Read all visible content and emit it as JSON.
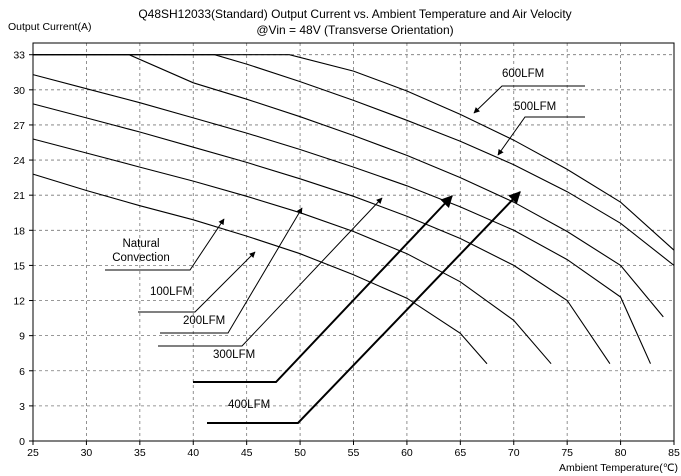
{
  "chart_data": {
    "type": "line",
    "title": "Q48SH12033(Standard)  Output Current vs. Ambient Temperature and Air Velocity",
    "subtitle": "@Vin = 48V (Transverse Orientation)",
    "ylabel": "Output Current(A)",
    "xlabel": "Ambient Temperature(℃)",
    "xlim": [
      25,
      85
    ],
    "ylim": [
      0,
      34
    ],
    "x_ticks": [
      25,
      30,
      35,
      40,
      45,
      50,
      55,
      60,
      65,
      70,
      75,
      80,
      85
    ],
    "y_ticks": [
      0,
      3,
      6,
      9,
      12,
      15,
      18,
      21,
      24,
      27,
      30,
      33
    ],
    "grid": "dashed",
    "series": [
      {
        "name": "Natural Convection",
        "points": [
          [
            25,
            22.8
          ],
          [
            30,
            21.4
          ],
          [
            35,
            20.1
          ],
          [
            40,
            18.9
          ],
          [
            45,
            17.5
          ],
          [
            50,
            16.0
          ],
          [
            55,
            14.2
          ],
          [
            60,
            12.2
          ],
          [
            65,
            9.2
          ],
          [
            67.5,
            6.6
          ]
        ]
      },
      {
        "name": "100LFM",
        "points": [
          [
            25,
            25.8
          ],
          [
            30,
            24.6
          ],
          [
            35,
            23.4
          ],
          [
            40,
            22.2
          ],
          [
            45,
            20.9
          ],
          [
            50,
            19.5
          ],
          [
            55,
            17.9
          ],
          [
            60,
            16.0
          ],
          [
            65,
            13.6
          ],
          [
            70,
            10.3
          ],
          [
            73.5,
            6.6
          ]
        ]
      },
      {
        "name": "200LFM",
        "points": [
          [
            25,
            28.8
          ],
          [
            30,
            27.6
          ],
          [
            35,
            26.4
          ],
          [
            40,
            25.1
          ],
          [
            45,
            23.8
          ],
          [
            50,
            22.4
          ],
          [
            55,
            20.9
          ],
          [
            60,
            19.2
          ],
          [
            65,
            17.3
          ],
          [
            70,
            15.0
          ],
          [
            75,
            12.0
          ],
          [
            79,
            6.6
          ]
        ]
      },
      {
        "name": "300LFM",
        "points": [
          [
            25,
            31.3
          ],
          [
            30,
            30.1
          ],
          [
            35,
            28.9
          ],
          [
            40,
            27.6
          ],
          [
            45,
            26.3
          ],
          [
            50,
            24.9
          ],
          [
            55,
            23.4
          ],
          [
            60,
            21.8
          ],
          [
            65,
            20.0
          ],
          [
            70,
            18.0
          ],
          [
            75,
            15.5
          ],
          [
            80,
            12.3
          ],
          [
            82.8,
            6.6
          ]
        ]
      },
      {
        "name": "400LFM",
        "points": [
          [
            25,
            33.0
          ],
          [
            34,
            33.0
          ],
          [
            40,
            30.6
          ],
          [
            45,
            29.2
          ],
          [
            50,
            27.7
          ],
          [
            55,
            26.1
          ],
          [
            60,
            24.4
          ],
          [
            65,
            22.5
          ],
          [
            70,
            20.4
          ],
          [
            75,
            17.9
          ],
          [
            80,
            15.0
          ],
          [
            84,
            10.6
          ]
        ]
      },
      {
        "name": "500LFM",
        "points": [
          [
            25,
            33.0
          ],
          [
            42,
            33.0
          ],
          [
            45,
            32.2
          ],
          [
            50,
            30.7
          ],
          [
            55,
            29.1
          ],
          [
            60,
            27.4
          ],
          [
            65,
            25.6
          ],
          [
            70,
            23.6
          ],
          [
            75,
            21.3
          ],
          [
            80,
            18.6
          ],
          [
            85,
            15.0
          ]
        ]
      },
      {
        "name": "600LFM",
        "points": [
          [
            25,
            33.0
          ],
          [
            49,
            33.0
          ],
          [
            55,
            31.6
          ],
          [
            60,
            29.9
          ],
          [
            65,
            27.9
          ],
          [
            70,
            25.7
          ],
          [
            75,
            23.2
          ],
          [
            80,
            20.4
          ],
          [
            85,
            16.3
          ]
        ]
      }
    ],
    "annotations": [
      {
        "text": "600LFM"
      },
      {
        "text": "500LFM"
      },
      {
        "text": "Natural\nConvection"
      },
      {
        "text": "100LFM"
      },
      {
        "text": "200LFM"
      },
      {
        "text": "300LFM"
      },
      {
        "text": "400LFM"
      }
    ]
  }
}
